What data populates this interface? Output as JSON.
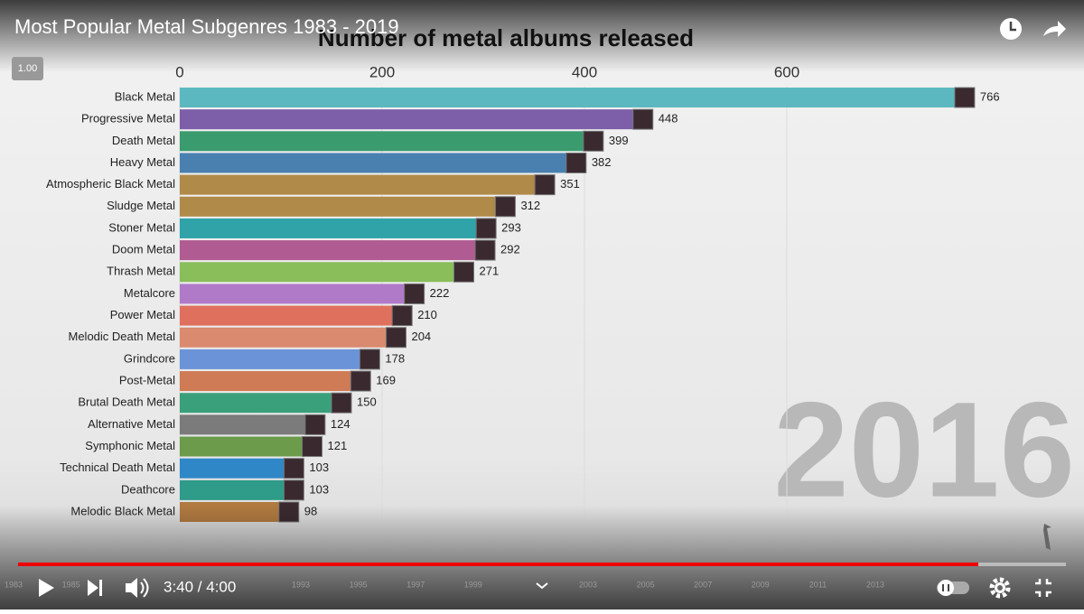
{
  "player": {
    "video_title": "Most Popular Metal Subgenres 1983 - 2019",
    "speed": "1.00",
    "time": "3:40 / 4:00",
    "timeline_years": [
      "1983",
      "1985",
      "1993",
      "1995",
      "1997",
      "1999",
      "2003",
      "2005",
      "2007",
      "2009",
      "2011",
      "2013"
    ]
  },
  "chart_data": {
    "type": "bar",
    "orientation": "horizontal",
    "title": "Number of metal albums released",
    "categories": [
      "Black Metal",
      "Progressive Metal",
      "Death Metal",
      "Heavy Metal",
      "Atmospheric Black Metal",
      "Sludge Metal",
      "Stoner Metal",
      "Doom Metal",
      "Thrash Metal",
      "Metalcore",
      "Power Metal",
      "Melodic Death Metal",
      "Grindcore",
      "Post-Metal",
      "Brutal Death Metal",
      "Alternative Metal",
      "Symphonic Metal",
      "Technical Death Metal",
      "Deathcore",
      "Melodic Black Metal"
    ],
    "values": [
      766,
      448,
      399,
      382,
      351,
      312,
      293,
      292,
      271,
      222,
      210,
      204,
      178,
      169,
      150,
      124,
      121,
      103,
      103,
      98
    ],
    "colors": [
      "#5cb8c0",
      "#7c5fa8",
      "#3a9b6e",
      "#4a80af",
      "#b08a48",
      "#b08a48",
      "#30a3a9",
      "#b05b92",
      "#89be5b",
      "#b07ac9",
      "#e0705e",
      "#d98a6f",
      "#6b93d8",
      "#cf7b56",
      "#3aa07b",
      "#7b7b7b",
      "#6b9b4b",
      "#2f87c7",
      "#2f9b89",
      "#b07a41"
    ],
    "xlim": [
      0,
      800
    ],
    "xticks": [
      0,
      200,
      400,
      600
    ],
    "grid": true,
    "year_label": "2016"
  }
}
